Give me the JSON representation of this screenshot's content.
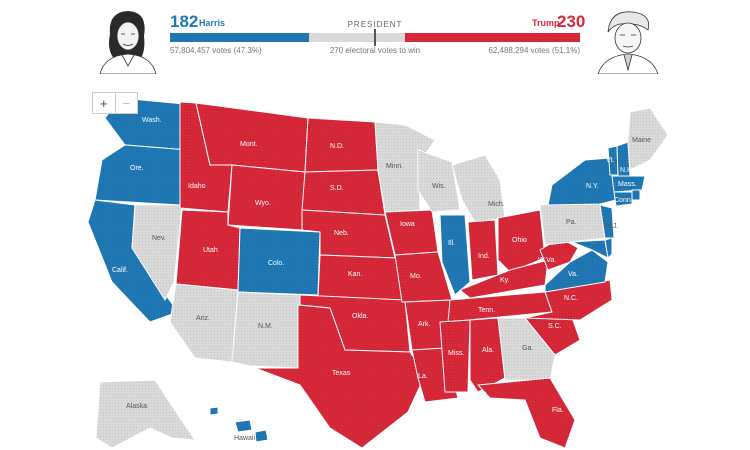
{
  "header": {
    "race_title": "PRESIDENT",
    "threshold_label": "270 electoral votes to win",
    "dem": {
      "count": "182",
      "name": "Harris",
      "votes": "57,804,457 votes (47.3%)",
      "color": "#1f78b4"
    },
    "rep": {
      "count": "230",
      "name": "Trump",
      "votes": "62,488,294 votes (51.1%)",
      "color": "#d62839"
    },
    "uncalled_color": "#d9d9d9"
  },
  "zoom": {
    "in_label": "+",
    "out_label": "−"
  },
  "states": {
    "wa": "Wash.",
    "or": "Ore.",
    "ca": "Calif.",
    "nv": "Nev.",
    "id": "Idaho",
    "mt": "Mont.",
    "wy": "Wyo.",
    "ut": "Utah",
    "co": "Colo.",
    "az": "Ariz.",
    "nm": "N.M.",
    "nd": "N.D.",
    "sd": "S.D.",
    "ne": "Neb.",
    "ks": "Kan.",
    "ok": "Okla.",
    "tx": "Texas",
    "mn": "Minn.",
    "ia": "Iowa",
    "mo": "Mo.",
    "ar": "Ark.",
    "la": "La.",
    "wi": "Wis.",
    "il": "Ill.",
    "mi": "Mich.",
    "in": "Ind.",
    "oh": "Ohio",
    "ky": "Ky.",
    "tn": "Tenn.",
    "ms": "Miss.",
    "al": "Ala.",
    "ga": "Ga.",
    "fl": "Fla.",
    "sc": "S.C.",
    "nc": "N.C.",
    "va": "Va.",
    "wv": "W.Va.",
    "pa": "Pa.",
    "ny": "N.Y.",
    "vt": "Vt.",
    "nh": "N.H.",
    "me": "Maine",
    "ma": "Mass.",
    "ct": "Conn.",
    "nj": "N.J.",
    "ak": "Alaska",
    "hi": "Hawaii"
  }
}
